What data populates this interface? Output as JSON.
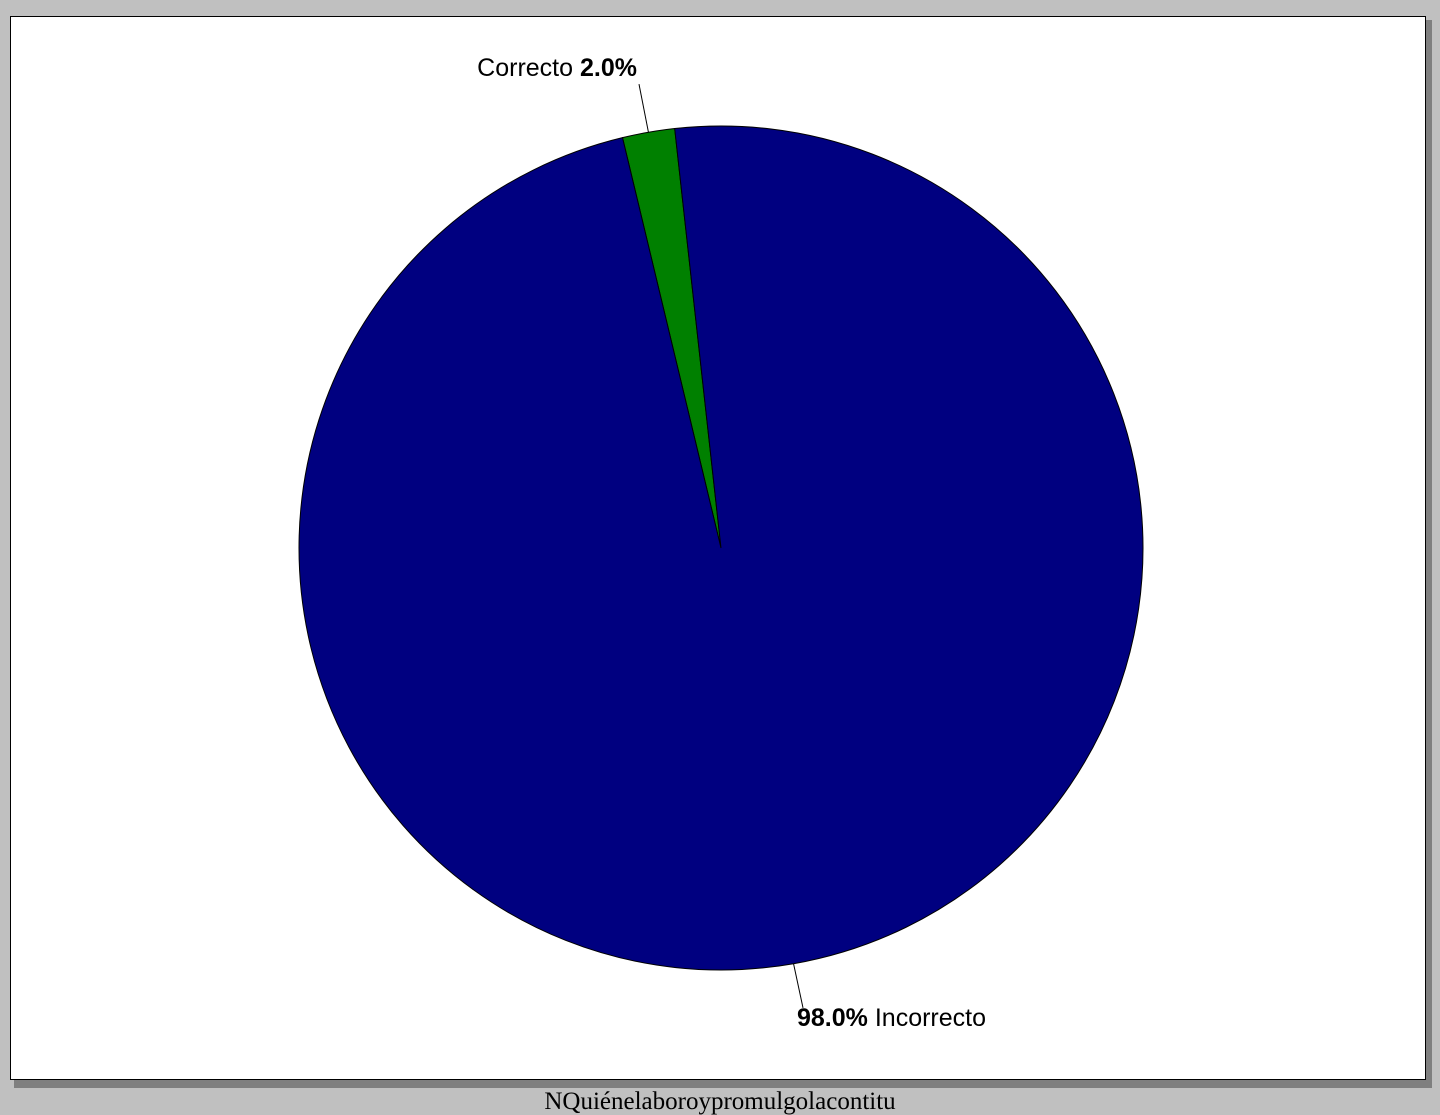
{
  "chart_data": {
    "type": "pie",
    "title": "",
    "caption": "NQuiénelaboroypromulgolacontitu",
    "slices": [
      {
        "label": "Correcto",
        "value": 2.0,
        "value_text": "2.0%",
        "color": "#008000",
        "label_position": "top"
      },
      {
        "label": "Incorrecto",
        "value": 98.0,
        "value_text": "98.0%",
        "color": "#000080",
        "label_position": "bottom"
      }
    ],
    "legend": "none",
    "border_color": "#000000"
  }
}
